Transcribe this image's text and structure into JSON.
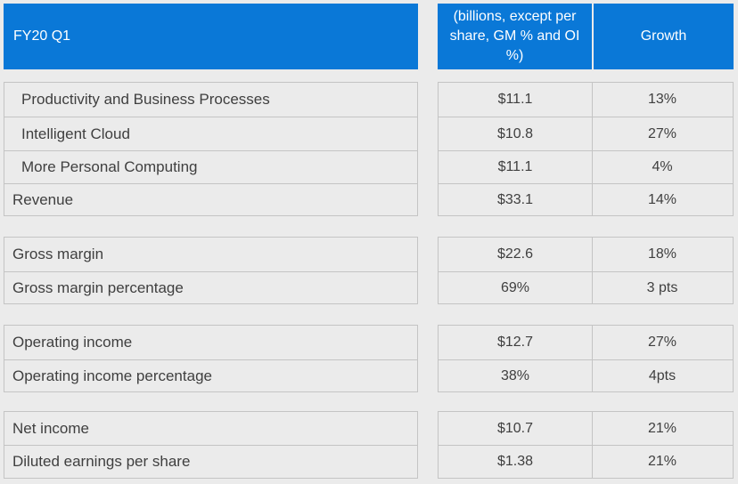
{
  "header": {
    "period": "FY20 Q1",
    "units": "(billions, except per share, GM % and OI %)",
    "growth": "Growth"
  },
  "groups": [
    {
      "rows": [
        {
          "label": "Productivity and Business Processes",
          "value": "$11.1",
          "growth": "13%"
        },
        {
          "label": "Intelligent Cloud",
          "value": "$10.8",
          "growth": "27%"
        },
        {
          "label": "More Personal Computing",
          "value": "$11.1",
          "growth": "4%"
        },
        {
          "label": "Revenue",
          "value": "$33.1",
          "growth": "14%"
        }
      ]
    },
    {
      "rows": [
        {
          "label": "Gross margin",
          "value": "$22.6",
          "growth": "18%"
        },
        {
          "label": "Gross margin percentage",
          "value": "69%",
          "growth": "3 pts"
        }
      ]
    },
    {
      "rows": [
        {
          "label": "Operating income",
          "value": "$12.7",
          "growth": "27%"
        },
        {
          "label": "Operating income percentage",
          "value": "38%",
          "growth": "4pts"
        }
      ]
    },
    {
      "rows": [
        {
          "label": "Net income",
          "value": "$10.7",
          "growth": "21%"
        },
        {
          "label": "Diluted earnings per share",
          "value": "$1.38",
          "growth": "21%"
        }
      ]
    }
  ],
  "colors": {
    "header_bg": "#0a78d7",
    "header_text": "#ffffff",
    "page_bg": "#ebebeb",
    "border": "#c4c4c4",
    "text": "#3f3f3f"
  }
}
